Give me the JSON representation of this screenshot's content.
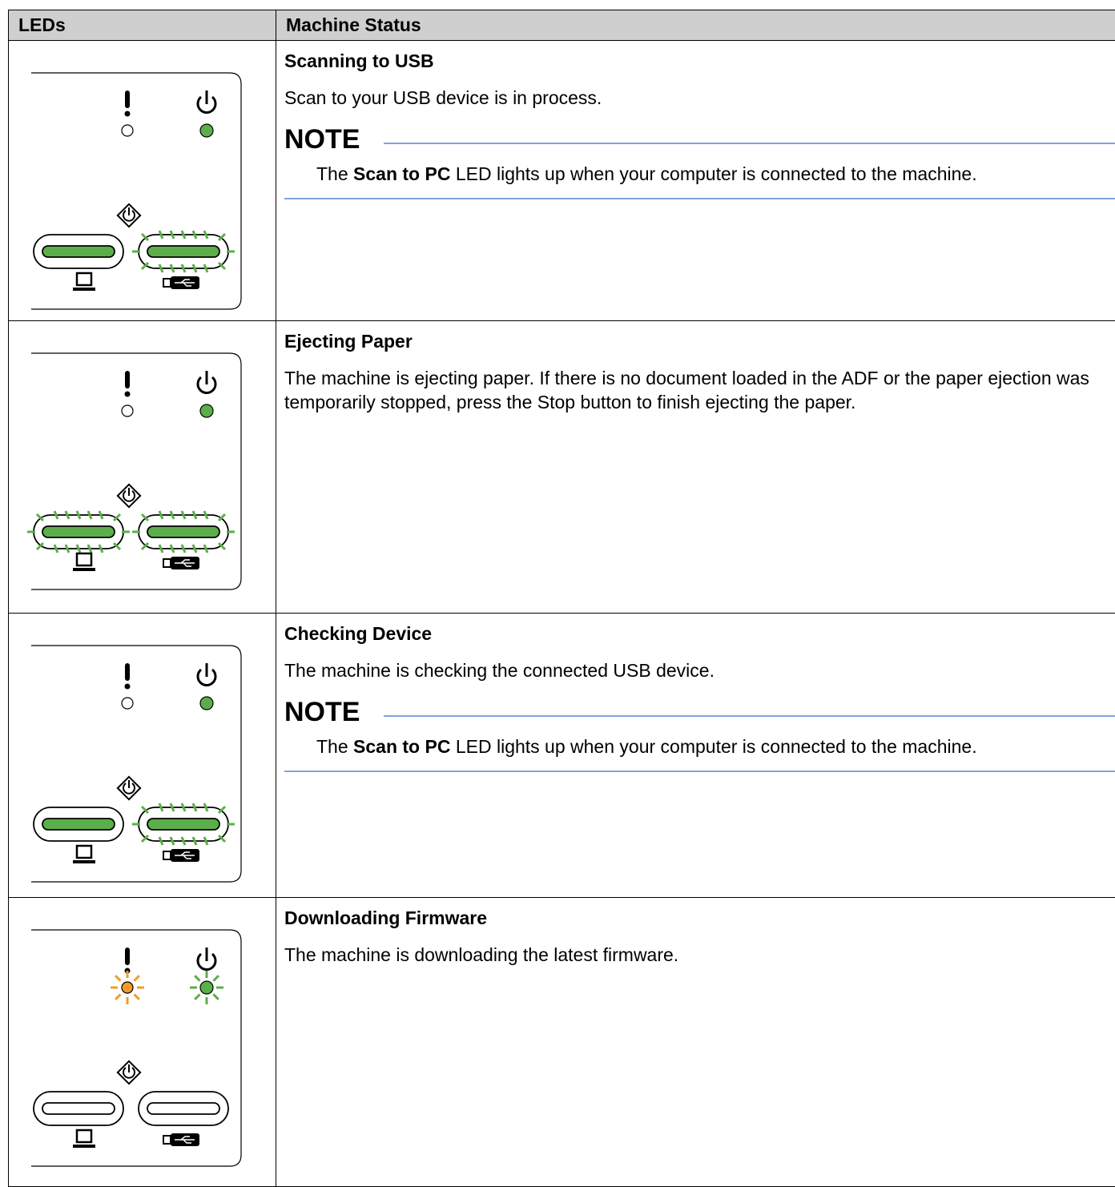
{
  "table": {
    "header": [
      "LEDs",
      "Machine Status"
    ],
    "rows": [
      {
        "title": "Scanning to USB",
        "text": "Scan to your USB device is in process.",
        "note": {
          "heading": "NOTE",
          "before": "The",
          "bold": "Scan to PC",
          "after": "LED lights up when your computer is connected to the machine."
        }
      },
      {
        "title": "Ejecting Paper",
        "text": "The machine is ejecting paper. If there is no document loaded in the ADF or the paper ejection was temporarily stopped, press the Stop button to finish ejecting the paper."
      },
      {
        "title": "Checking Device",
        "text": "The machine is checking the connected USB device.",
        "note": {
          "heading": "NOTE",
          "before": "The",
          "bold": "Scan to PC",
          "after": "LED lights up when your computer is connected to the machine."
        }
      },
      {
        "title": "Downloading Firmware",
        "text": "The machine is downloading the latest firmware."
      }
    ]
  }
}
